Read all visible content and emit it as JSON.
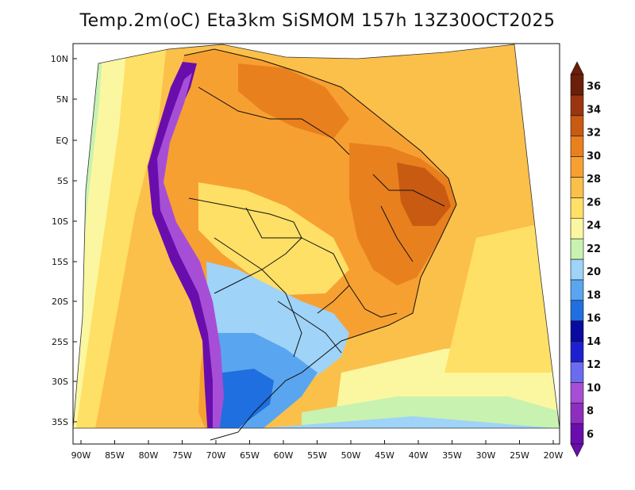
{
  "title": "Temp.2m(oC) Eta3km SiSMOM 157h 13Z30OCT2025",
  "lat_labels": [
    "10N",
    "5N",
    "EQ",
    "5S",
    "10S",
    "15S",
    "20S",
    "25S",
    "30S",
    "35S"
  ],
  "lon_labels": [
    "90W",
    "85W",
    "80W",
    "75W",
    "70W",
    "65W",
    "60W",
    "55W",
    "50W",
    "45W",
    "40W",
    "35W",
    "30W",
    "25W",
    "20W"
  ],
  "colorbar": {
    "levels": [
      "6",
      "8",
      "10",
      "12",
      "14",
      "16",
      "18",
      "20",
      "22",
      "24",
      "26",
      "28",
      "30",
      "32",
      "34",
      "36"
    ],
    "colors": [
      "#6a0dad",
      "#8e2ebf",
      "#a64fd6",
      "#6b6bf0",
      "#1f1fd0",
      "#0a0aa0",
      "#1f6fe0",
      "#5aa5f0",
      "#9fd3f7",
      "#c8f2b0",
      "#fbf7a0",
      "#ffe066",
      "#fbc04a",
      "#f7a032",
      "#e9801e",
      "#c95a12",
      "#9b3410",
      "#6b1e08"
    ]
  },
  "field_colors": {
    "ocean_warm": "#fbc04a",
    "ocean_mild": "#ffe066",
    "ocean_cool": "#fbf7a0",
    "ocean_cold": "#c8f2b0",
    "amazon": "#f7a032",
    "nordeste": "#e9801e",
    "south": "#5aa5f0",
    "andes": "#6a0dad"
  }
}
